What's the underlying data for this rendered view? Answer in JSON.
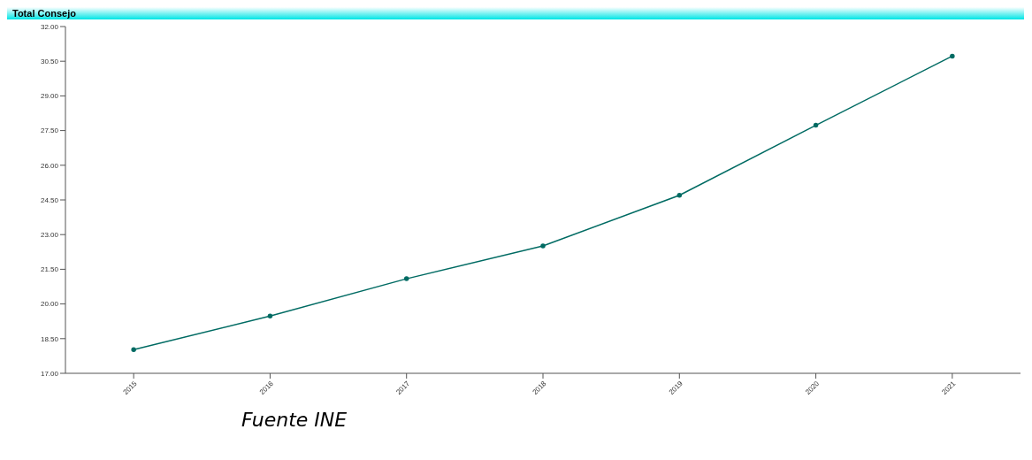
{
  "chart_data": {
    "type": "line",
    "title": "Total Consejo",
    "categories": [
      "2015",
      "2016",
      "2017",
      "2018",
      "2019",
      "2020",
      "2021"
    ],
    "series": [
      {
        "color": "#006b63",
        "values": [
          18.02,
          19.48,
          21.09,
          22.51,
          24.7,
          27.73,
          30.72
        ]
      }
    ],
    "ylim": [
      17,
      32
    ],
    "yticks": [
      {
        "value": 17,
        "label": "17.00"
      },
      {
        "value": 18.5,
        "label": "18.50"
      },
      {
        "value": 20,
        "label": "20.00"
      },
      {
        "value": 21.5,
        "label": "21.50"
      },
      {
        "value": 23,
        "label": "23.00"
      },
      {
        "value": 24.5,
        "label": "24.50"
      },
      {
        "value": 26,
        "label": "26.00"
      },
      {
        "value": 27.5,
        "label": "27.50"
      },
      {
        "value": 29,
        "label": "29.00"
      },
      {
        "value": 30.5,
        "label": "30.50"
      },
      {
        "value": 32,
        "label": "32.00"
      }
    ],
    "grid": false,
    "legend": false,
    "marker": "circle",
    "line_style": "solid",
    "annotations": [
      "Fuente INE"
    ]
  }
}
